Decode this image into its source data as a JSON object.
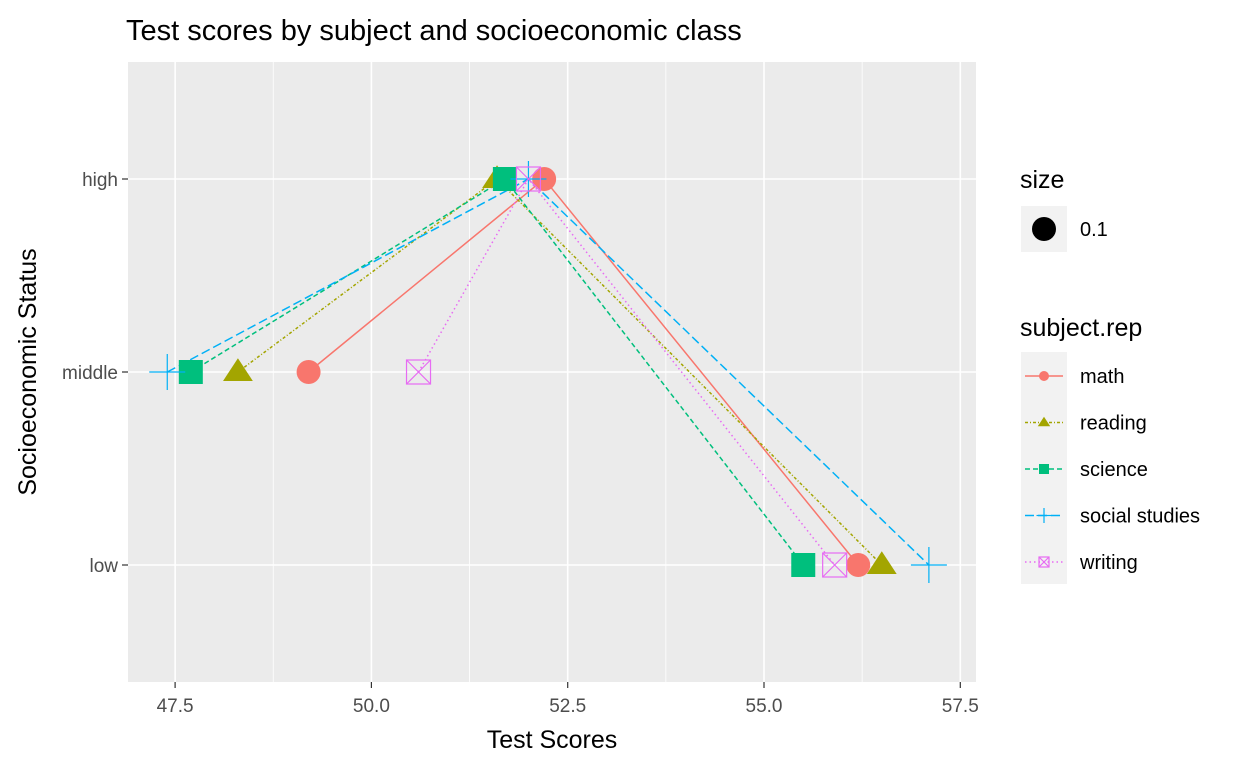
{
  "chart_data": {
    "type": "line",
    "title": "Test scores by subject and socioeconomic class",
    "xlabel": "Test Scores",
    "ylabel": "Socioeconomic Status",
    "xlim": [
      46.9,
      57.7
    ],
    "x_ticks": [
      "47.5",
      "50.0",
      "52.5",
      "55.0",
      "57.5"
    ],
    "categories": [
      "middle",
      "high",
      "low"
    ],
    "series": [
      {
        "name": "math",
        "color": "#F8766D",
        "shape": "circle",
        "dash": "solid",
        "values": [
          49.2,
          52.2,
          56.2
        ]
      },
      {
        "name": "reading",
        "color": "#A3A500",
        "shape": "triangle",
        "dash": "dotted-dash",
        "values": [
          48.3,
          51.6,
          56.5
        ]
      },
      {
        "name": "science",
        "color": "#00BF7D",
        "shape": "square",
        "dash": "dashed",
        "values": [
          47.7,
          51.7,
          55.5
        ]
      },
      {
        "name": "social studies",
        "color": "#00B0F6",
        "shape": "plus",
        "dash": "long-dash",
        "values": [
          47.4,
          52.0,
          57.1
        ]
      },
      {
        "name": "writing",
        "color": "#E76BF3",
        "shape": "boxcross",
        "dash": "dotted",
        "values": [
          50.6,
          52.0,
          55.9
        ]
      }
    ],
    "size_legend": {
      "title": "size",
      "label": "0.1"
    },
    "color_legend_title": "subject.rep",
    "grid": true,
    "legend_position": "right"
  }
}
